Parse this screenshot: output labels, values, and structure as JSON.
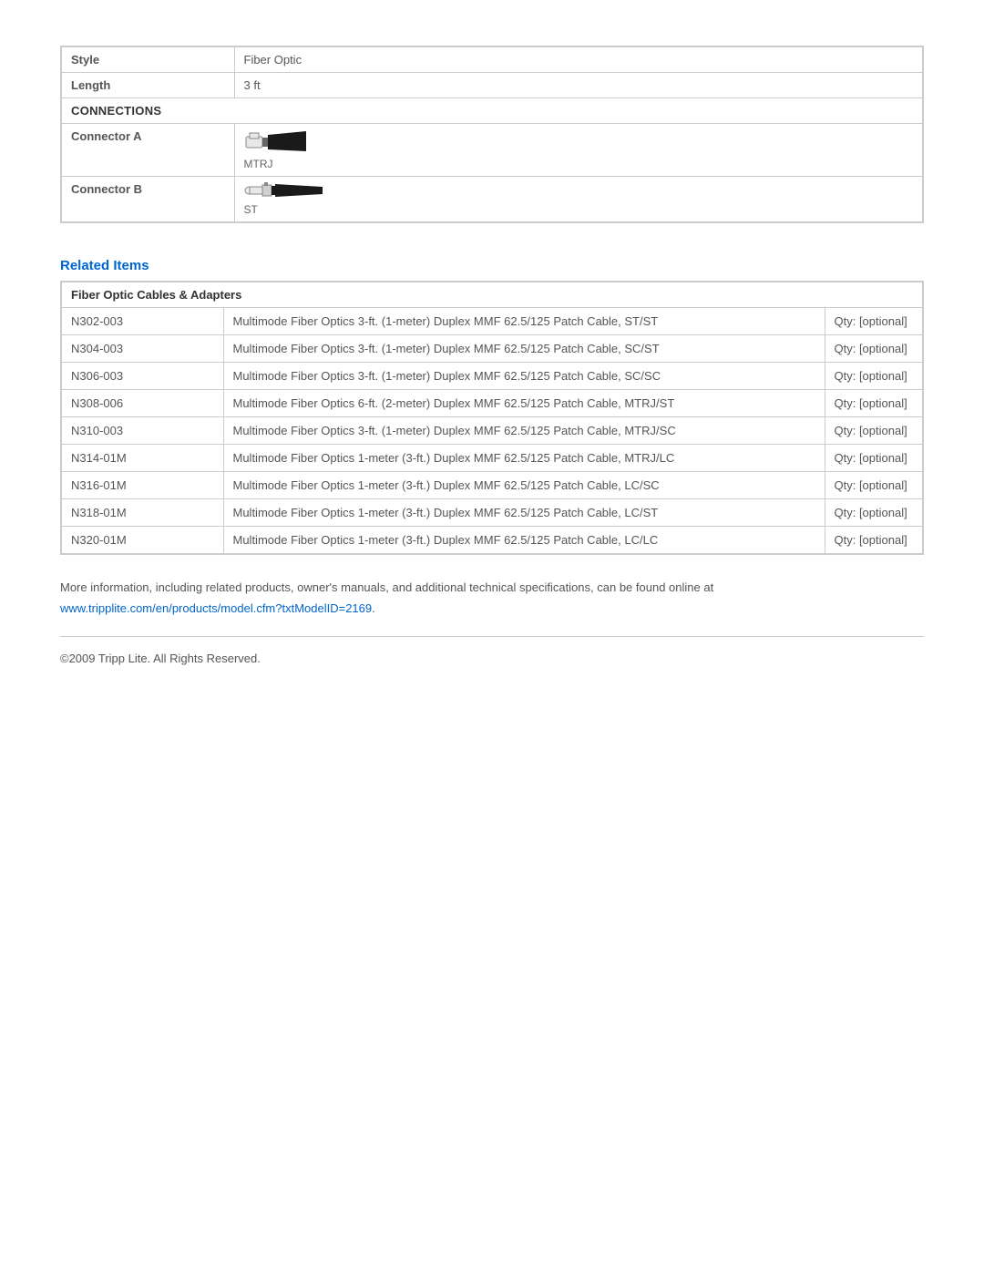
{
  "spec": {
    "rows": [
      {
        "label": "Style",
        "value": "Fiber Optic"
      },
      {
        "label": "Length",
        "value": "3 ft"
      }
    ],
    "connections_header": "CONNECTIONS",
    "connectors": [
      {
        "label": "Connector A",
        "name": "MTRJ",
        "icon": "mtrj"
      },
      {
        "label": "Connector B",
        "name": "ST",
        "icon": "st"
      }
    ]
  },
  "related": {
    "heading": "Related Items",
    "section_title": "Fiber Optic Cables & Adapters",
    "qty_label": "Qty: [optional]",
    "items": [
      {
        "sku": "N302-003",
        "desc": "Multimode Fiber Optics 3-ft. (1-meter) Duplex MMF 62.5/125 Patch Cable, ST/ST"
      },
      {
        "sku": "N304-003",
        "desc": "Multimode Fiber Optics 3-ft. (1-meter) Duplex MMF 62.5/125 Patch Cable, SC/ST"
      },
      {
        "sku": "N306-003",
        "desc": "Multimode Fiber Optics 3-ft. (1-meter) Duplex MMF 62.5/125 Patch Cable, SC/SC"
      },
      {
        "sku": "N308-006",
        "desc": "Multimode Fiber Optics 6-ft. (2-meter) Duplex MMF 62.5/125 Patch Cable, MTRJ/ST"
      },
      {
        "sku": "N310-003",
        "desc": "Multimode Fiber Optics 3-ft. (1-meter) Duplex MMF 62.5/125 Patch Cable, MTRJ/SC"
      },
      {
        "sku": "N314-01M",
        "desc": "Multimode Fiber Optics 1-meter (3-ft.) Duplex MMF 62.5/125 Patch Cable, MTRJ/LC"
      },
      {
        "sku": "N316-01M",
        "desc": "Multimode Fiber Optics 1-meter (3-ft.) Duplex MMF 62.5/125 Patch Cable, LC/SC"
      },
      {
        "sku": "N318-01M",
        "desc": "Multimode Fiber Optics 1-meter (3-ft.) Duplex MMF 62.5/125 Patch Cable, LC/ST"
      },
      {
        "sku": "N320-01M",
        "desc": "Multimode Fiber Optics 1-meter (3-ft.) Duplex MMF 62.5/125 Patch Cable, LC/LC"
      }
    ]
  },
  "footer": {
    "more_info_text": "More information, including related products, owner's manuals, and additional technical specifications, can be found online at",
    "link_text": "www.tripplite.com/en/products/model.cfm?txtModelID=2169",
    "copyright": "©2009 Tripp Lite.  All Rights Reserved."
  }
}
